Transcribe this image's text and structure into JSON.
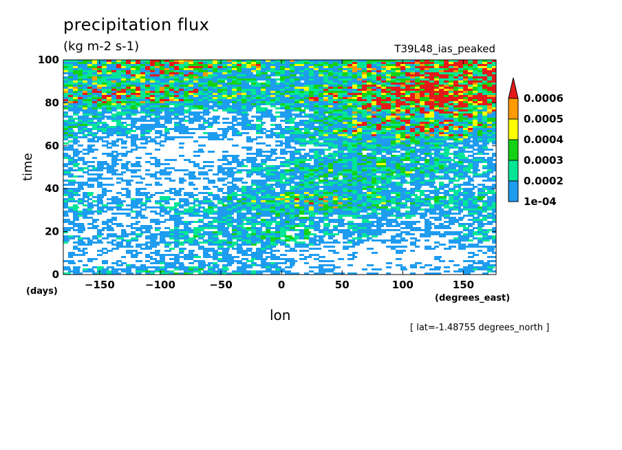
{
  "chart_data": {
    "type": "heatmap",
    "title": "precipitation flux",
    "units": "(kg m-2 s-1)",
    "run_label": "T39L48_ias_peaked",
    "xlabel": "lon",
    "ylabel": "time",
    "x_unit": "(degrees_east)",
    "y_unit": "(days)",
    "annotation": "[ lat=-1.48755 degrees_north ]",
    "xlim": [
      -180,
      177
    ],
    "ylim": [
      0,
      100
    ],
    "x_ticks": [
      -150,
      -100,
      -50,
      0,
      50,
      100,
      150
    ],
    "x_tick_labels": [
      "−150",
      "−100",
      "−50",
      "0",
      "50",
      "100",
      "150"
    ],
    "y_ticks": [
      0,
      20,
      40,
      60,
      80,
      100
    ],
    "y_tick_labels": [
      "0",
      "20",
      "40",
      "60",
      "80",
      "100"
    ],
    "colorbar": {
      "levels": [
        0.0001,
        0.0002,
        0.0003,
        0.0004,
        0.0005,
        0.0006
      ],
      "level_labels": [
        "1e-04",
        "0.0002",
        "0.0003",
        "0.0004",
        "0.0005",
        "0.0006"
      ],
      "colors": [
        "#1e9cf0",
        "#00e696",
        "#14d214",
        "#ffff00",
        "#ff9a00",
        "#e41a1a"
      ],
      "extend": "max"
    },
    "grid": false
  }
}
